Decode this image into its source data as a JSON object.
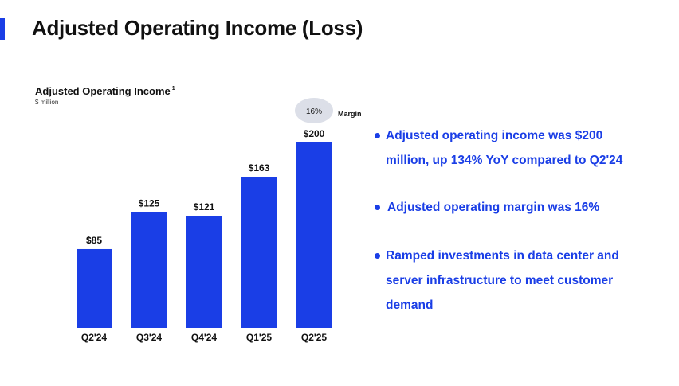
{
  "slide": {
    "title": "Adjusted Operating Income (Loss)"
  },
  "chart_data": {
    "type": "bar",
    "title": "Adjusted Operating Income",
    "title_footnote": "1",
    "subtitle": "$ million",
    "categories": [
      "Q2'24",
      "Q3'24",
      "Q4'24",
      "Q1'25",
      "Q2'25"
    ],
    "values": [
      85,
      125,
      121,
      163,
      200
    ],
    "value_labels": [
      "$85",
      "$125",
      "$121",
      "$163",
      "$200"
    ],
    "ylim": [
      0,
      200
    ],
    "grid": false,
    "bar_color": "#1a3ee6",
    "annotation": {
      "category": "Q2'25",
      "text": "16%",
      "label": "Margin",
      "bubble_color": "#dcdfe8"
    }
  },
  "bullets": [
    {
      "text": "Adjusted operating income was $200 million, up 134% YoY compared to Q2'24"
    },
    {
      "text": "Adjusted operating margin was 16%"
    },
    {
      "text": "Ramped investments in data center and server infrastructure to meet customer demand"
    }
  ],
  "colors": {
    "accent": "#1a3ee6",
    "text": "#111111"
  }
}
